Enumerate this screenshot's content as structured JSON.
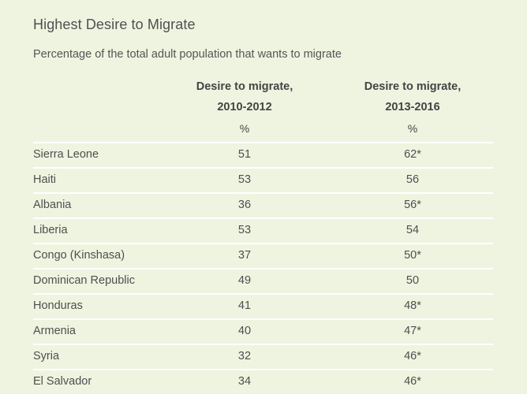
{
  "title": "Highest Desire to Migrate",
  "subtitle": "Percentage of the total adult population that wants to migrate",
  "columns": {
    "col1_line1": "Desire to migrate,",
    "col1_line2": "2010-2012",
    "col2_line1": "Desire to migrate,",
    "col2_line2": "2013-2016",
    "unit1": "%",
    "unit2": "%"
  },
  "chart_data": {
    "type": "table",
    "title": "Highest Desire to Migrate",
    "subtitle": "Percentage of the total adult population that wants to migrate",
    "columns": [
      "",
      "Desire to migrate, 2010-2012",
      "Desire to migrate, 2013-2016"
    ],
    "rows": [
      {
        "country": "Sierra Leone",
        "v2010_2012": "51",
        "v2013_2016": "62*"
      },
      {
        "country": "Haiti",
        "v2010_2012": "53",
        "v2013_2016": "56"
      },
      {
        "country": "Albania",
        "v2010_2012": "36",
        "v2013_2016": "56*"
      },
      {
        "country": "Liberia",
        "v2010_2012": "53",
        "v2013_2016": "54"
      },
      {
        "country": "Congo (Kinshasa)",
        "v2010_2012": "37",
        "v2013_2016": "50*"
      },
      {
        "country": "Dominican Republic",
        "v2010_2012": "49",
        "v2013_2016": "50"
      },
      {
        "country": "Honduras",
        "v2010_2012": "41",
        "v2013_2016": "48*"
      },
      {
        "country": "Armenia",
        "v2010_2012": "40",
        "v2013_2016": "47*"
      },
      {
        "country": "Syria",
        "v2010_2012": "32",
        "v2013_2016": "46*"
      },
      {
        "country": "El Salvador",
        "v2010_2012": "34",
        "v2013_2016": "46*"
      }
    ]
  }
}
